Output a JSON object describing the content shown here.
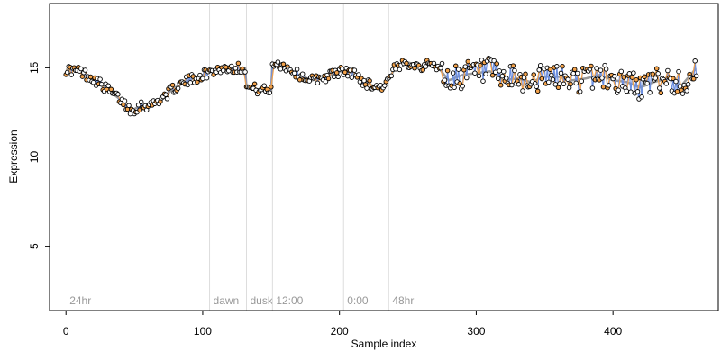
{
  "chart_data": {
    "type": "line",
    "title": "",
    "xlabel": "Sample index",
    "ylabel": "Expression",
    "xlim": [
      -12,
      477
    ],
    "ylim": [
      1.4,
      18.6
    ],
    "x_ticks": [
      0,
      100,
      200,
      300,
      400
    ],
    "y_ticks": [
      5,
      10,
      15
    ],
    "grid": false,
    "legend": "none",
    "colors": {
      "point_fill_primary": "#f3a24b",
      "point_fill_secondary": "#ffffff",
      "line_primary": "#f3a24b",
      "line_secondary": "#6c8fe0",
      "smooth_line": "#9a9a9a",
      "region_line": "#dddddd",
      "region_text": "#999999"
    },
    "regions": [
      {
        "x": 0,
        "label": "24hr"
      },
      {
        "x": 105,
        "label": "dawn"
      },
      {
        "x": 132,
        "label": "dusk"
      },
      {
        "x": 151,
        "label": "12:00"
      },
      {
        "x": 203,
        "label": "0:00"
      },
      {
        "x": 236,
        "label": "48hr"
      }
    ],
    "series_anchor_values": [
      {
        "x": 0,
        "y": 14.9
      },
      {
        "x": 10,
        "y": 14.8
      },
      {
        "x": 20,
        "y": 14.4
      },
      {
        "x": 30,
        "y": 13.8
      },
      {
        "x": 40,
        "y": 13.2
      },
      {
        "x": 48,
        "y": 12.6
      },
      {
        "x": 55,
        "y": 12.9
      },
      {
        "x": 62,
        "y": 12.9
      },
      {
        "x": 70,
        "y": 13.3
      },
      {
        "x": 80,
        "y": 13.9
      },
      {
        "x": 90,
        "y": 14.3
      },
      {
        "x": 100,
        "y": 14.6
      },
      {
        "x": 110,
        "y": 14.9
      },
      {
        "x": 120,
        "y": 15.0
      },
      {
        "x": 131,
        "y": 15.0
      },
      {
        "x": 132,
        "y": 13.9
      },
      {
        "x": 140,
        "y": 13.8
      },
      {
        "x": 150,
        "y": 13.7
      },
      {
        "x": 151,
        "y": 15.3
      },
      {
        "x": 160,
        "y": 15.1
      },
      {
        "x": 170,
        "y": 14.6
      },
      {
        "x": 180,
        "y": 14.3
      },
      {
        "x": 190,
        "y": 14.5
      },
      {
        "x": 200,
        "y": 14.8
      },
      {
        "x": 210,
        "y": 14.7
      },
      {
        "x": 220,
        "y": 14.1
      },
      {
        "x": 230,
        "y": 13.9
      },
      {
        "x": 235,
        "y": 14.2
      },
      {
        "x": 240,
        "y": 14.9
      },
      {
        "x": 250,
        "y": 15.3
      },
      {
        "x": 260,
        "y": 15.1
      },
      {
        "x": 270,
        "y": 15.2
      },
      {
        "x": 280,
        "y": 14.3
      },
      {
        "x": 290,
        "y": 14.6
      },
      {
        "x": 300,
        "y": 14.7
      },
      {
        "x": 310,
        "y": 14.8
      },
      {
        "x": 320,
        "y": 14.3
      },
      {
        "x": 330,
        "y": 14.4
      },
      {
        "x": 340,
        "y": 14.2
      },
      {
        "x": 350,
        "y": 14.5
      },
      {
        "x": 360,
        "y": 14.5
      },
      {
        "x": 370,
        "y": 14.3
      },
      {
        "x": 380,
        "y": 14.4
      },
      {
        "x": 390,
        "y": 14.6
      },
      {
        "x": 400,
        "y": 14.3
      },
      {
        "x": 410,
        "y": 14.2
      },
      {
        "x": 420,
        "y": 13.9
      },
      {
        "x": 430,
        "y": 14.2
      },
      {
        "x": 440,
        "y": 14.4
      },
      {
        "x": 450,
        "y": 14.0
      },
      {
        "x": 460,
        "y": 14.9
      }
    ],
    "n_samples": 462
  }
}
